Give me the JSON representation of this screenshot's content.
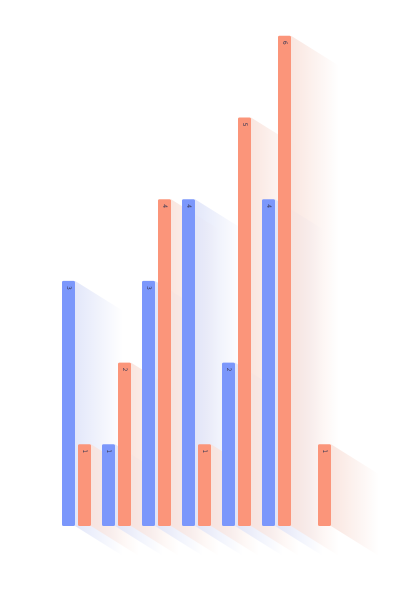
{
  "chart_data": {
    "type": "bar",
    "title": "",
    "xlabel": "",
    "ylabel": "",
    "categories": [
      "",
      "",
      "",
      "",
      "",
      "",
      ""
    ],
    "series": [
      {
        "values": [
          3,
          1,
          3,
          4,
          2,
          4,
          null
        ],
        "color": "#7b97fb",
        "labels": [
          "3",
          "1",
          "3",
          "4",
          "2",
          "4",
          ""
        ]
      },
      {
        "values": [
          1,
          2,
          4,
          1,
          5,
          6,
          1
        ],
        "color": "#fb957a",
        "labels": [
          "1",
          "2",
          "4",
          "1",
          "5",
          "6",
          "1"
        ]
      }
    ],
    "ylim": [
      0,
      6
    ],
    "grid": false,
    "legend": "none",
    "shadow_colors": [
      "#dfe4f9",
      "#f9e3dc"
    ]
  }
}
